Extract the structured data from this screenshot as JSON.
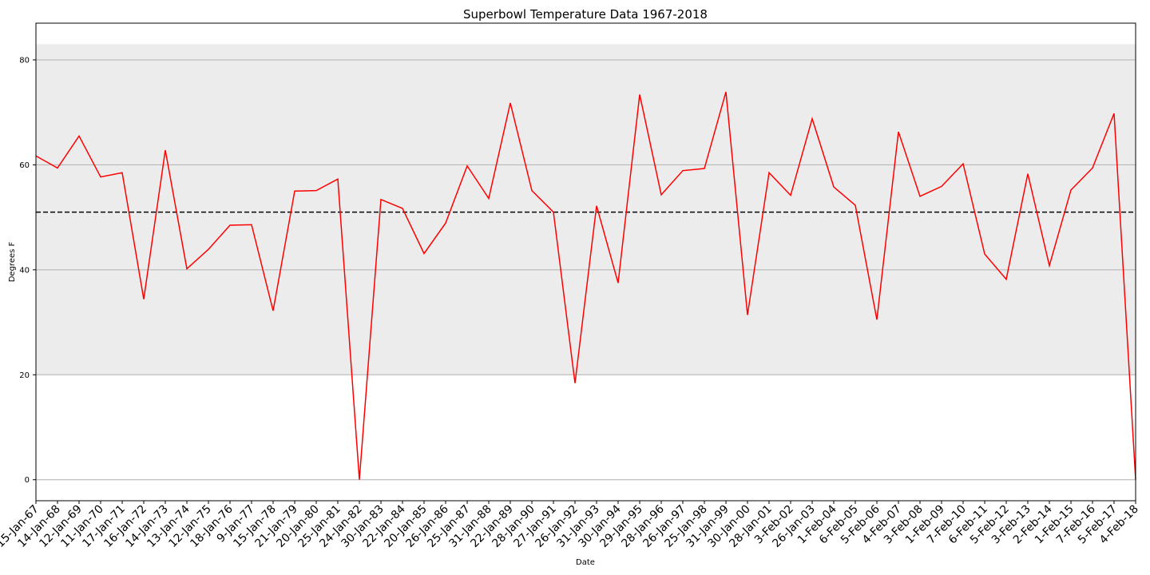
{
  "chart_data": {
    "type": "line",
    "title": "Superbowl Temperature Data 1967-2018",
    "xlabel": "Date",
    "ylabel": "Degrees F",
    "ylim": [
      -4,
      87
    ],
    "yticks": [
      0,
      20,
      40,
      60,
      80
    ],
    "grid": "horizontal",
    "categories": [
      "15-Jan-67",
      "14-Jan-68",
      "12-Jan-69",
      "11-Jan-70",
      "17-Jan-71",
      "16-Jan-72",
      "14-Jan-73",
      "13-Jan-74",
      "12-Jan-75",
      "18-Jan-76",
      "9-Jan-77",
      "15-Jan-78",
      "21-Jan-79",
      "20-Jan-80",
      "25-Jan-81",
      "24-Jan-82",
      "30-Jan-83",
      "22-Jan-84",
      "20-Jan-85",
      "26-Jan-86",
      "25-Jan-87",
      "31-Jan-88",
      "22-Jan-89",
      "28-Jan-90",
      "27-Jan-91",
      "26-Jan-92",
      "31-Jan-93",
      "30-Jan-94",
      "29-Jan-95",
      "28-Jan-96",
      "26-Jan-97",
      "25-Jan-98",
      "31-Jan-99",
      "30-Jan-00",
      "28-Jan-01",
      "3-Feb-02",
      "26-Jan-03",
      "1-Feb-04",
      "6-Feb-05",
      "5-Feb-06",
      "4-Feb-07",
      "3-Feb-08",
      "1-Feb-09",
      "7-Feb-10",
      "6-Feb-11",
      "5-Feb-12",
      "3-Feb-13",
      "2-Feb-14",
      "1-Feb-15",
      "7-Feb-16",
      "5-Feb-17",
      "4-Feb-18"
    ],
    "series": [
      {
        "color": "#ff0000",
        "values": [
          61.7,
          59.4,
          65.5,
          57.7,
          58.5,
          34.4,
          62.8,
          40.2,
          43.9,
          48.5,
          48.6,
          32.2,
          55.0,
          55.1,
          57.3,
          0.0,
          53.4,
          51.7,
          43.1,
          48.9,
          59.8,
          53.6,
          71.8,
          55.1,
          51.0,
          18.4,
          52.2,
          37.5,
          73.4,
          54.3,
          58.9,
          59.3,
          73.9,
          31.4,
          58.5,
          54.2,
          68.8,
          55.8,
          52.3,
          30.5,
          66.3,
          54.0,
          55.9,
          60.2,
          43.0,
          38.2,
          58.3,
          40.8,
          55.2,
          59.4,
          69.8,
          0.0
        ]
      }
    ],
    "reference_line": {
      "value": 51.0,
      "style": "dashed",
      "color": "#000000"
    },
    "band": {
      "range": [
        20,
        83
      ],
      "color": "#ececec"
    },
    "colors": {
      "grid": "#b0b0b0",
      "axes": "#000000",
      "background": "#ffffff"
    }
  }
}
